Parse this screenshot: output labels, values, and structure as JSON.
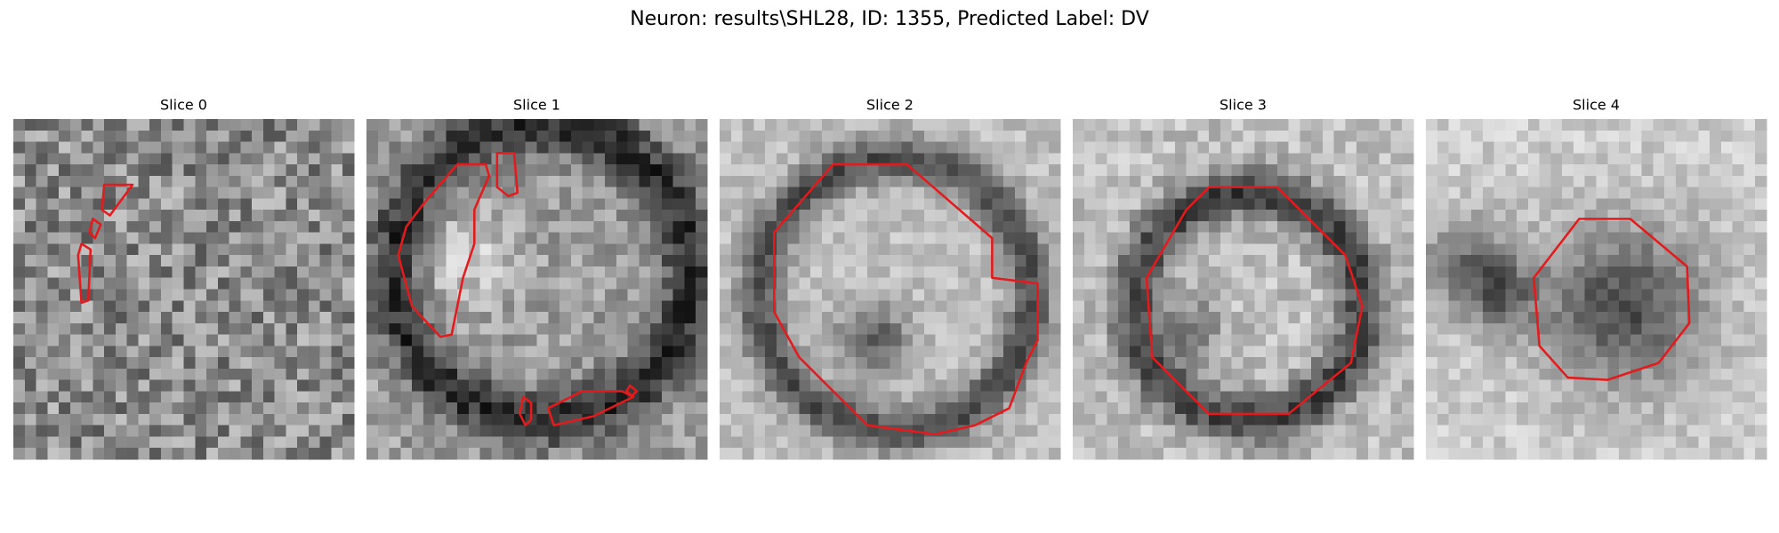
{
  "figure": {
    "title": "Neuron: results\\SHL28, ID: 1355, Predicted Label: DV",
    "panels": [
      {
        "title": "Slice 0"
      },
      {
        "title": "Slice 1"
      },
      {
        "title": "Slice 2"
      },
      {
        "title": "Slice 3"
      },
      {
        "title": "Slice 4"
      }
    ]
  }
}
